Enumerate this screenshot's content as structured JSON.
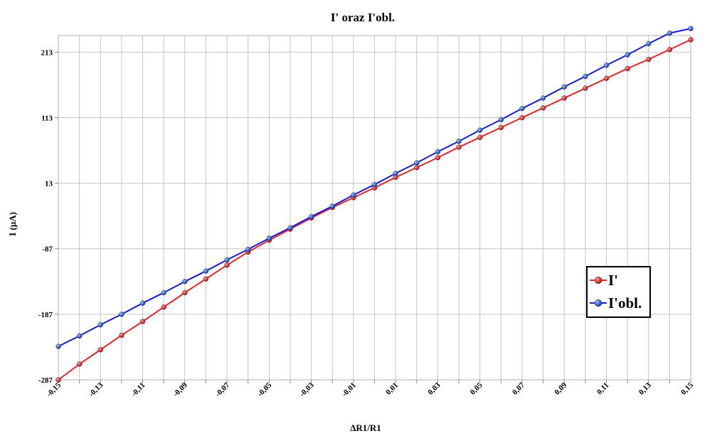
{
  "chart_data": {
    "type": "line",
    "title": "I'  oraz I'obl.",
    "xlabel": "ΔR1/R1",
    "ylabel": "I (µA)",
    "xlim": [
      -0.15,
      0.15
    ],
    "ylim": [
      -287,
      213
    ],
    "x_tick_labels": [
      "-0,15",
      "-0,14",
      "-0,13",
      "-0,12",
      "-0,11",
      "-0,1",
      "-0,09",
      "-0,08",
      "-0,07",
      "-0,06",
      "-0,05",
      "-0,04",
      "-0,03",
      "-0,02",
      "-0,01",
      "0",
      "0,01",
      "0,02",
      "0,03",
      "0,04",
      "0,05",
      "0,06",
      "0,07",
      "0,08",
      "0,09",
      "0,1",
      "0,11",
      "0,12",
      "0,13",
      "0,14",
      "0,15"
    ],
    "x_tick_labels_shown": [
      "-0,15",
      "",
      "-0,13",
      "",
      "-0,11",
      "",
      "-0,09",
      "",
      "-0,07",
      "",
      "-0,05",
      "",
      "-0,03",
      "",
      "-0,01",
      "",
      "0,01",
      "",
      "0,03",
      "",
      "0,05",
      "",
      "0,07",
      "",
      "0,09",
      "",
      "0,11",
      "",
      "0,13",
      "",
      "0,15"
    ],
    "y_tick_values": [
      -287,
      -187,
      -87,
      13,
      113,
      213
    ],
    "y_tick_labels": [
      "-287",
      "-187",
      "-87",
      "13",
      "113",
      "213"
    ],
    "grid": true,
    "legend_position": "right",
    "x": [
      -0.15,
      -0.14,
      -0.13,
      -0.12,
      -0.11,
      -0.1,
      -0.09,
      -0.08,
      -0.07,
      -0.06,
      -0.05,
      -0.04,
      -0.03,
      -0.02,
      -0.01,
      0.0,
      0.01,
      0.02,
      0.03,
      0.04,
      0.05,
      0.06,
      0.07,
      0.08,
      0.09,
      0.1,
      0.11,
      0.12,
      0.13,
      0.14,
      0.15
    ],
    "series": [
      {
        "name": "I'",
        "color": "#e8262a",
        "values": [
          -287,
          -263,
          -241,
          -219,
          -198,
          -176,
          -154,
          -133,
          -112,
          -92,
          -74,
          -57,
          -40,
          -24,
          -9,
          6,
          22,
          37,
          52,
          68,
          83,
          98,
          113,
          128,
          143,
          158,
          173,
          188,
          202,
          217,
          232
        ]
      },
      {
        "name": "I'obl.",
        "color": "#1a1ad6",
        "values": [
          -236,
          -220,
          -203,
          -187,
          -170,
          -154,
          -137,
          -121,
          -104,
          -88,
          -71,
          -55,
          -38,
          -22,
          -5,
          11,
          28,
          44,
          61,
          77,
          94,
          110,
          127,
          143,
          160,
          176,
          193,
          209,
          226,
          242,
          249
        ]
      }
    ]
  }
}
